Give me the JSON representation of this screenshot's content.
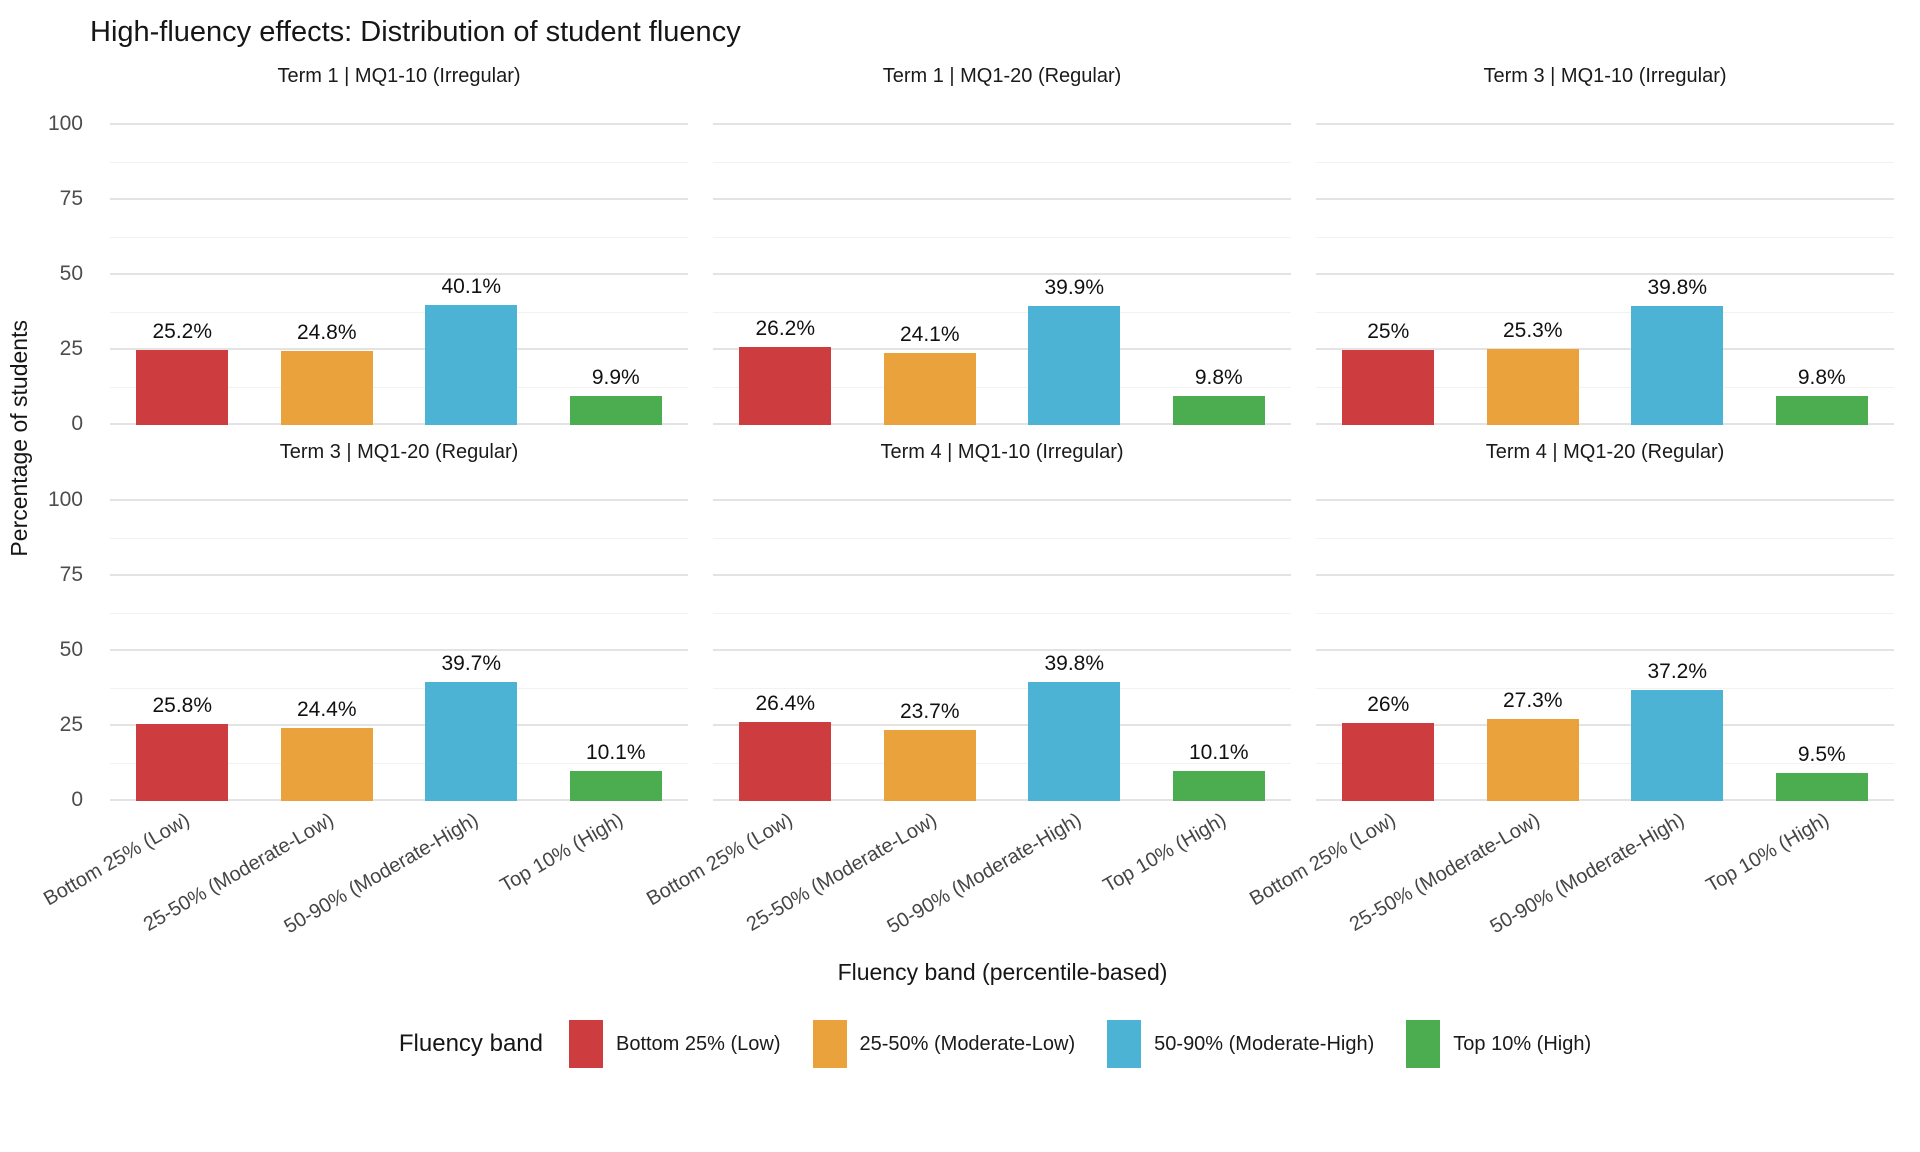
{
  "title": "High-fluency effects: Distribution of student fluency",
  "chart_data": {
    "type": "bar",
    "title": "High-fluency effects: Distribution of student fluency",
    "xlabel": "Fluency band (percentile-based)",
    "ylabel": "Percentage of students",
    "yticks": [
      0,
      25,
      50,
      75,
      100
    ],
    "ylim": [
      0,
      105
    ],
    "grid": {
      "major": [
        0,
        25,
        50,
        75,
        100
      ],
      "minor": [
        12.5,
        37.5,
        62.5,
        87.5
      ]
    },
    "categories": [
      "Bottom 25% (Low)",
      "25-50% (Moderate-Low)",
      "50-90% (Moderate-High)",
      "Top 10% (High)"
    ],
    "series_colors": [
      "#CD3C3F",
      "#E9A23C",
      "#4DB3D4",
      "#4BAD4F"
    ],
    "facets": [
      {
        "title": "Term 1 | MQ1-10 (Irregular)",
        "values": [
          25.2,
          24.8,
          40.1,
          9.9
        ],
        "labels": [
          "25.2%",
          "24.8%",
          "40.1%",
          "9.9%"
        ]
      },
      {
        "title": "Term 1 | MQ1-20 (Regular)",
        "values": [
          26.2,
          24.1,
          39.9,
          9.8
        ],
        "labels": [
          "26.2%",
          "24.1%",
          "39.9%",
          "9.8%"
        ]
      },
      {
        "title": "Term 3 | MQ1-10 (Irregular)",
        "values": [
          25,
          25.3,
          39.8,
          9.8
        ],
        "labels": [
          "25%",
          "25.3%",
          "39.8%",
          "9.8%"
        ]
      },
      {
        "title": "Term 3 | MQ1-20 (Regular)",
        "values": [
          25.8,
          24.4,
          39.7,
          10.1
        ],
        "labels": [
          "25.8%",
          "24.4%",
          "39.7%",
          "10.1%"
        ]
      },
      {
        "title": "Term 4 | MQ1-10 (Irregular)",
        "values": [
          26.4,
          23.7,
          39.8,
          10.1
        ],
        "labels": [
          "26.4%",
          "23.7%",
          "39.8%",
          "10.1%"
        ]
      },
      {
        "title": "Term 4 | MQ1-20 (Regular)",
        "values": [
          26,
          27.3,
          37.2,
          9.5
        ],
        "labels": [
          "26%",
          "27.3%",
          "37.2%",
          "9.5%"
        ]
      }
    ],
    "legend": {
      "title": "Fluency band",
      "position": "bottom",
      "entries": [
        "Bottom 25% (Low)",
        "25-50% (Moderate-Low)",
        "50-90% (Moderate-High)",
        "Top 10% (High)"
      ]
    }
  },
  "colors": {
    "bar_red": "#CD3C3F",
    "bar_orange": "#E9A23C",
    "bar_blue": "#4DB3D4",
    "bar_green": "#4BAD4F",
    "grid_major": "#E3E3E3",
    "grid_minor": "#F2F2F2",
    "axis_text": "#4D4D4D",
    "text": "#1A1A1A"
  }
}
